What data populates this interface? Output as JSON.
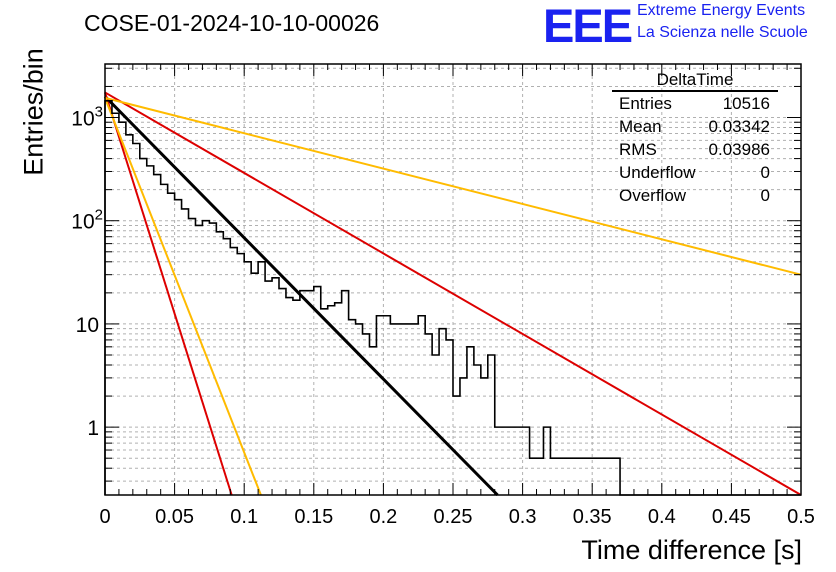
{
  "header": {
    "title": "COSE-01-2024-10-10-00026",
    "logo_text": "EEE",
    "logo_line1": "Extreme Energy Events",
    "logo_line2": "La Scienza nelle Scuole"
  },
  "stats_box": {
    "title": "DeltaTime",
    "rows": [
      {
        "label": "Entries",
        "value": "10516"
      },
      {
        "label": "Mean",
        "value": "0.03342"
      },
      {
        "label": "RMS",
        "value": "0.03986"
      },
      {
        "label": "Underflow",
        "value": "0"
      },
      {
        "label": "Overflow",
        "value": "0"
      }
    ]
  },
  "colors": {
    "histogram": "#000000",
    "fit_main": "#000000",
    "fit_red": "#dd0000",
    "fit_orange": "#ffbb00",
    "logo_blue": "#1a22f0",
    "grid": "#b0b0b0"
  },
  "chart_data": {
    "type": "histogram",
    "xlabel": "Time difference [s]",
    "ylabel": "Entries/bin",
    "xlim": [
      0,
      0.5
    ],
    "ylim": [
      0.22,
      3300
    ],
    "yscale": "log",
    "grid": true,
    "x_ticks": [
      "0",
      "0.05",
      "0.1",
      "0.15",
      "0.2",
      "0.25",
      "0.3",
      "0.35",
      "0.4",
      "0.45",
      "0.5"
    ],
    "y_ticks": [
      {
        "value": 1,
        "label": "1"
      },
      {
        "value": 10,
        "label": "10"
      },
      {
        "value": 100,
        "label": "10^2"
      },
      {
        "value": 1000,
        "label": "10^3"
      }
    ],
    "bin_width": 0.005,
    "counts": [
      1450,
      1100,
      900,
      680,
      560,
      400,
      340,
      280,
      225,
      185,
      160,
      130,
      105,
      90,
      100,
      95,
      78,
      67,
      55,
      48,
      40,
      31,
      40,
      26,
      28,
      22,
      18,
      17,
      21,
      21,
      23,
      14,
      15,
      16,
      21,
      11,
      10,
      8,
      6,
      12,
      12,
      10,
      10,
      10,
      10,
      12,
      8,
      5,
      9,
      7,
      2,
      3,
      6,
      4,
      3,
      5,
      1,
      1,
      1,
      1,
      1,
      0.5,
      0.5,
      1,
      0.5,
      0.5,
      0.5,
      0.5,
      0.5,
      0.5,
      0.5,
      0.5,
      0.5,
      0.5,
      0,
      0,
      0,
      0,
      0,
      0,
      0,
      0,
      0,
      0,
      0,
      0,
      0,
      0,
      0,
      0,
      0,
      0,
      0,
      0,
      0,
      0,
      0,
      0,
      0,
      0
    ],
    "series": [
      {
        "kind": "fit",
        "color_key": "fit_main",
        "x": [
          0,
          0.282
        ],
        "y": [
          1600,
          0.22
        ]
      },
      {
        "kind": "fit",
        "color_key": "fit_red",
        "x": [
          0,
          0.5
        ],
        "y": [
          1750,
          0.22
        ]
      },
      {
        "kind": "fit",
        "color_key": "fit_red",
        "x": [
          0,
          0.091
        ],
        "y": [
          1750,
          0.22
        ]
      },
      {
        "kind": "fit",
        "color_key": "fit_orange",
        "x": [
          0,
          0.5
        ],
        "y": [
          1550,
          30
        ]
      },
      {
        "kind": "fit",
        "color_key": "fit_orange",
        "x": [
          0,
          0.112
        ],
        "y": [
          1550,
          0.22
        ]
      }
    ]
  }
}
